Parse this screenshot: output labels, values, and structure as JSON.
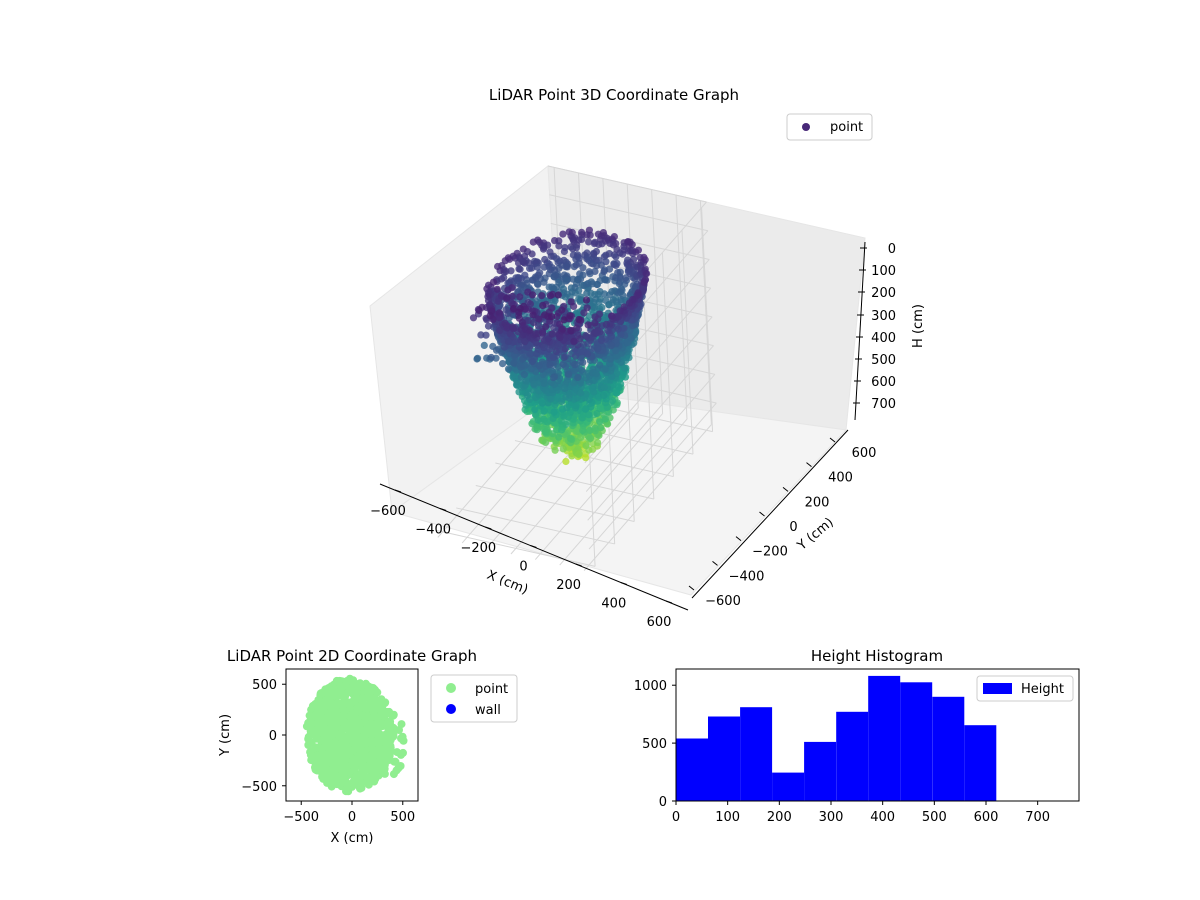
{
  "figure_title": "",
  "chart_data": [
    {
      "type": "scatter",
      "projection": "3d",
      "title": "LiDAR Point 3D Coordinate Graph",
      "xlabel": "X (cm)",
      "ylabel": "Y (cm)",
      "zlabel": "H (cm)",
      "x_ticks": [
        "−600",
        "−400",
        "−200",
        "0",
        "200",
        "400",
        "600"
      ],
      "y_ticks": [
        "−600",
        "−400",
        "−200",
        "0",
        "200",
        "400",
        "600"
      ],
      "z_ticks": [
        "0",
        "100",
        "200",
        "300",
        "400",
        "500",
        "600",
        "700"
      ],
      "xlim": [
        -650,
        650
      ],
      "ylim": [
        -650,
        650
      ],
      "zlim": [
        0,
        780
      ],
      "z_inverted": true,
      "colormap": "viridis",
      "grid": true,
      "legend": {
        "placement": "top-right",
        "entries": [
          {
            "label": "point",
            "color": "#482878"
          }
        ]
      },
      "series": [
        {
          "name": "point",
          "description_of_shape": "dense dome of points over X −450..450, Y −550..550, H 0..700"
        }
      ]
    },
    {
      "type": "scatter",
      "title": "LiDAR Point 2D Coordinate Graph",
      "xlabel": "X (cm)",
      "ylabel": "Y (cm)",
      "x_ticks": [
        "−500",
        "0",
        "500"
      ],
      "y_ticks": [
        "500",
        "0",
        "−500"
      ],
      "xlim": [
        -650,
        650
      ],
      "ylim": [
        -650,
        650
      ],
      "legend": {
        "placement": "outside-right",
        "entries": [
          {
            "label": "point",
            "color": "#90ee90"
          },
          {
            "label": "wall",
            "color": "#0000ff"
          }
        ]
      },
      "series": [
        {
          "name": "point",
          "color": "#90ee90"
        },
        {
          "name": "wall",
          "color": "#0000ff",
          "values": []
        }
      ]
    },
    {
      "type": "bar",
      "title": "Height Histogram",
      "x_ticks": [
        "0",
        "100",
        "200",
        "300",
        "400",
        "500",
        "600",
        "700"
      ],
      "y_ticks": [
        "0",
        "500",
        "1000"
      ],
      "xlim": [
        0,
        780
      ],
      "ylim": [
        0,
        1140
      ],
      "bin_edges": [
        0,
        62,
        124,
        186,
        248,
        310,
        372,
        434,
        496,
        558,
        620
      ],
      "values": [
        540,
        730,
        810,
        245,
        510,
        770,
        1080,
        1025,
        900,
        655
      ],
      "color": "#0000ff",
      "legend": {
        "placement": "top-right",
        "entries": [
          {
            "label": "Height",
            "color": "#0000ff"
          }
        ]
      }
    }
  ]
}
